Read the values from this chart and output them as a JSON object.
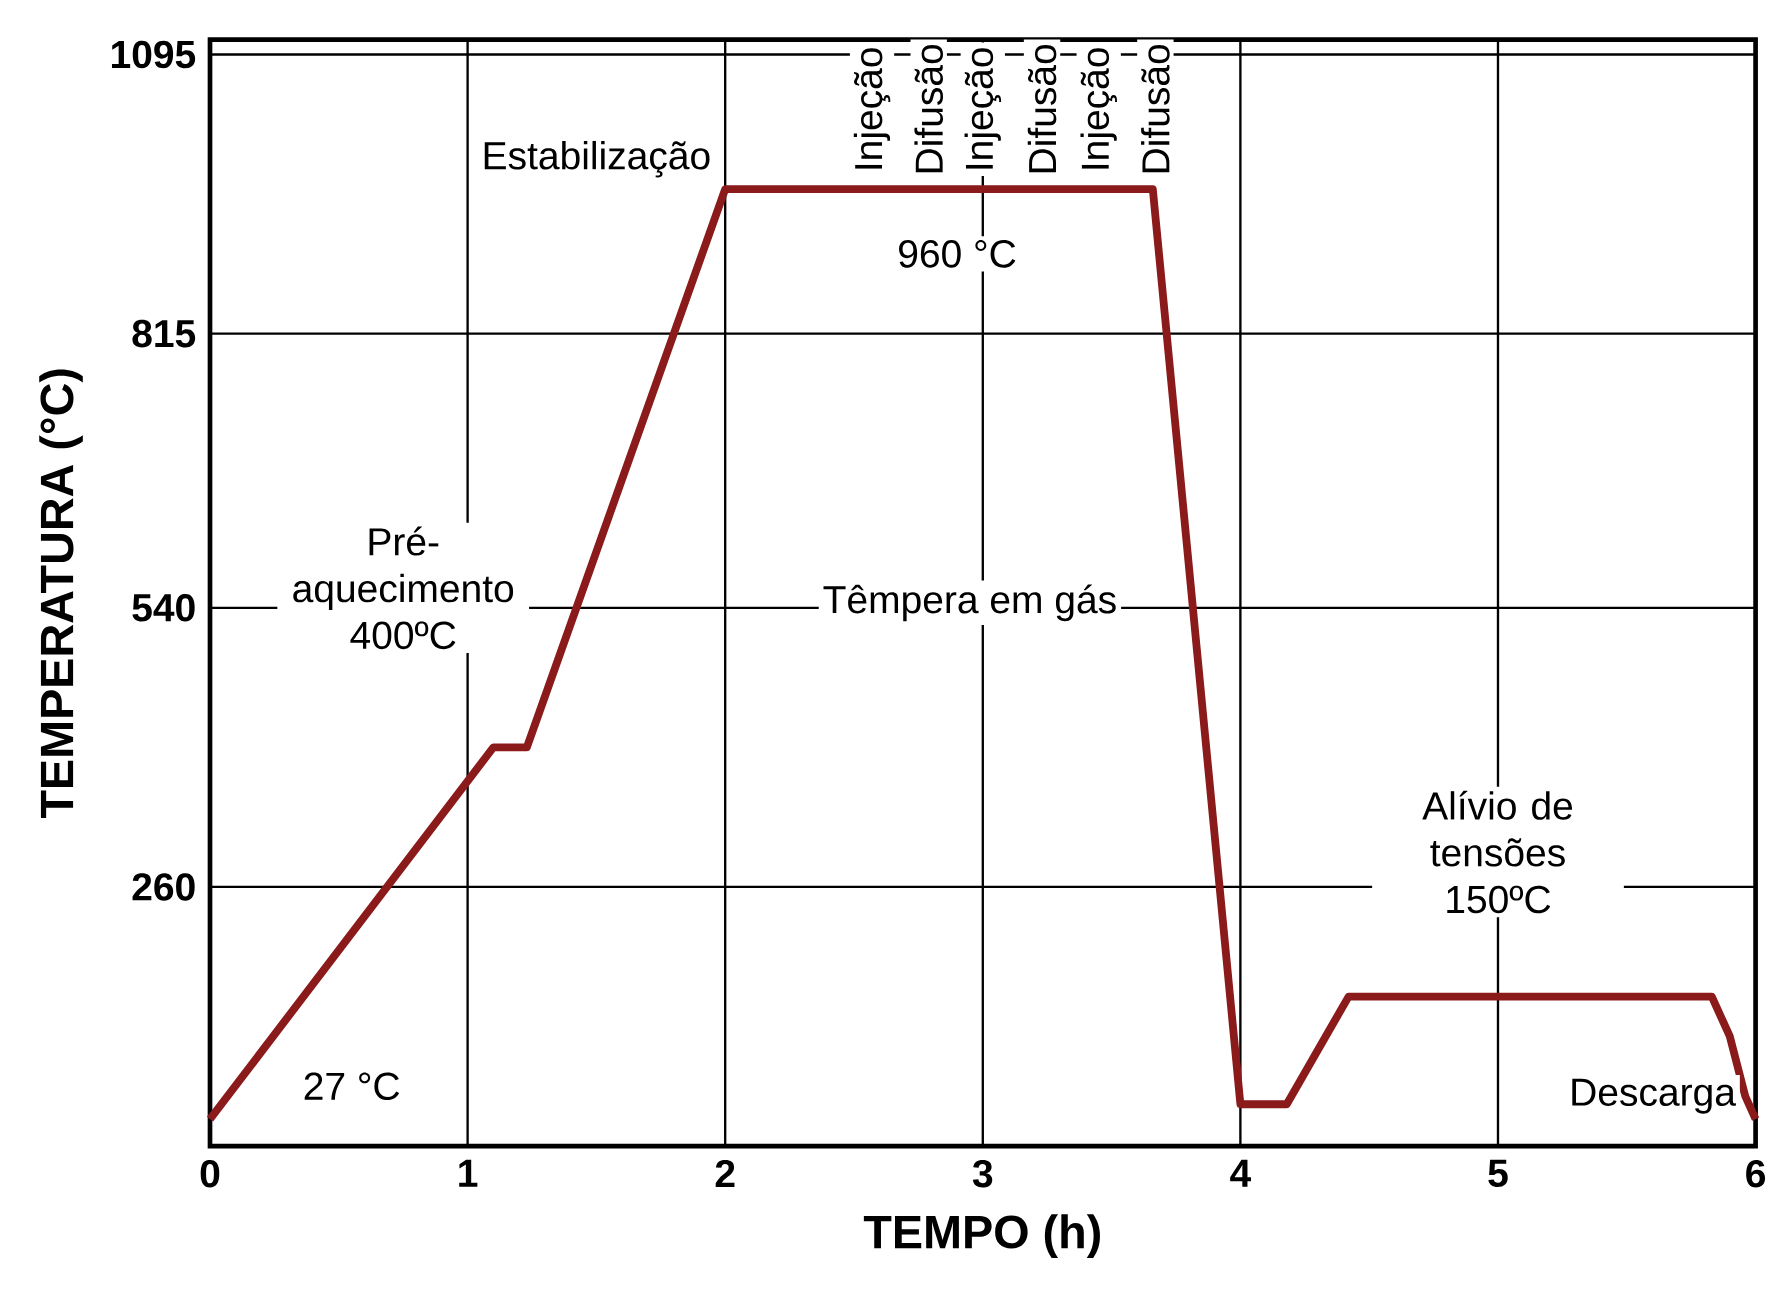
{
  "chart_data": {
    "type": "line",
    "xlabel": "TEMPO (h)",
    "ylabel": "TEMPERATURA (°C)",
    "x": [
      0,
      1.1,
      1.23,
      2.0,
      3.66,
      4.0,
      4.18,
      4.42,
      5.83,
      5.9,
      5.96,
      6.0
    ],
    "series": [
      {
        "color": "#8b1a1a",
        "values": [
          27,
          400,
          400,
          960,
          960,
          42,
          42,
          150,
          150,
          110,
          50,
          27
        ]
      }
    ],
    "xlim": [
      0,
      6
    ],
    "ylim": [
      0,
      1110
    ],
    "xticks": [
      0,
      1,
      2,
      3,
      4,
      5,
      6
    ],
    "yticks": [
      260,
      540,
      815,
      1095
    ],
    "grid": true,
    "marker": "none",
    "line_style": "solid",
    "annotations": [
      "27 °C",
      "Pré-aquecimento 400ºC",
      "Estabilização",
      "960 °C",
      "Injeção",
      "Difusão",
      "Injeção",
      "Difusão",
      "Injeção",
      "Difusão",
      "Têmpera em gás",
      "Alívio de tensões 150ºC",
      "Descarga"
    ]
  }
}
